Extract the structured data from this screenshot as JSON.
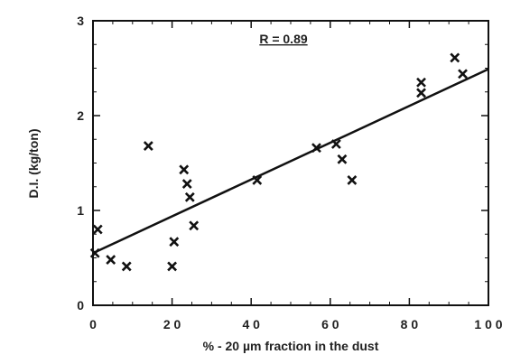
{
  "chart_data": {
    "type": "scatter",
    "xlabel": "% - 20 µm fraction in the dust",
    "ylabel": "D.I.  (kg/ton)",
    "xlim": [
      0,
      100
    ],
    "ylim": [
      0,
      3
    ],
    "x_ticks": [
      0,
      20,
      40,
      60,
      80,
      100
    ],
    "x_tick_labels": [
      "0",
      "2 0",
      "4 0",
      "6 0",
      "8 0",
      "1 0 0"
    ],
    "y_ticks": [
      0,
      1,
      2,
      3
    ],
    "y_tick_labels": [
      "0",
      "1",
      "2",
      "3"
    ],
    "annotation": "R = 0.89",
    "grid": false,
    "marker": "x",
    "points": [
      {
        "x": 0.5,
        "y": 0.55
      },
      {
        "x": 1.2,
        "y": 0.8
      },
      {
        "x": 4.5,
        "y": 0.48
      },
      {
        "x": 8.5,
        "y": 0.41
      },
      {
        "x": 14,
        "y": 1.68
      },
      {
        "x": 20,
        "y": 0.41
      },
      {
        "x": 20.5,
        "y": 0.67
      },
      {
        "x": 23,
        "y": 1.43
      },
      {
        "x": 23.8,
        "y": 1.28
      },
      {
        "x": 24.5,
        "y": 1.14
      },
      {
        "x": 25.5,
        "y": 0.84
      },
      {
        "x": 41.5,
        "y": 1.32
      },
      {
        "x": 56.5,
        "y": 1.66
      },
      {
        "x": 61.5,
        "y": 1.7
      },
      {
        "x": 63,
        "y": 1.54
      },
      {
        "x": 65.5,
        "y": 1.32
      },
      {
        "x": 83,
        "y": 2.35
      },
      {
        "x": 83,
        "y": 2.24
      },
      {
        "x": 91.5,
        "y": 2.61
      },
      {
        "x": 93.5,
        "y": 2.44
      }
    ],
    "fit_line": {
      "x": [
        0,
        100
      ],
      "y": [
        0.55,
        2.49
      ]
    }
  }
}
